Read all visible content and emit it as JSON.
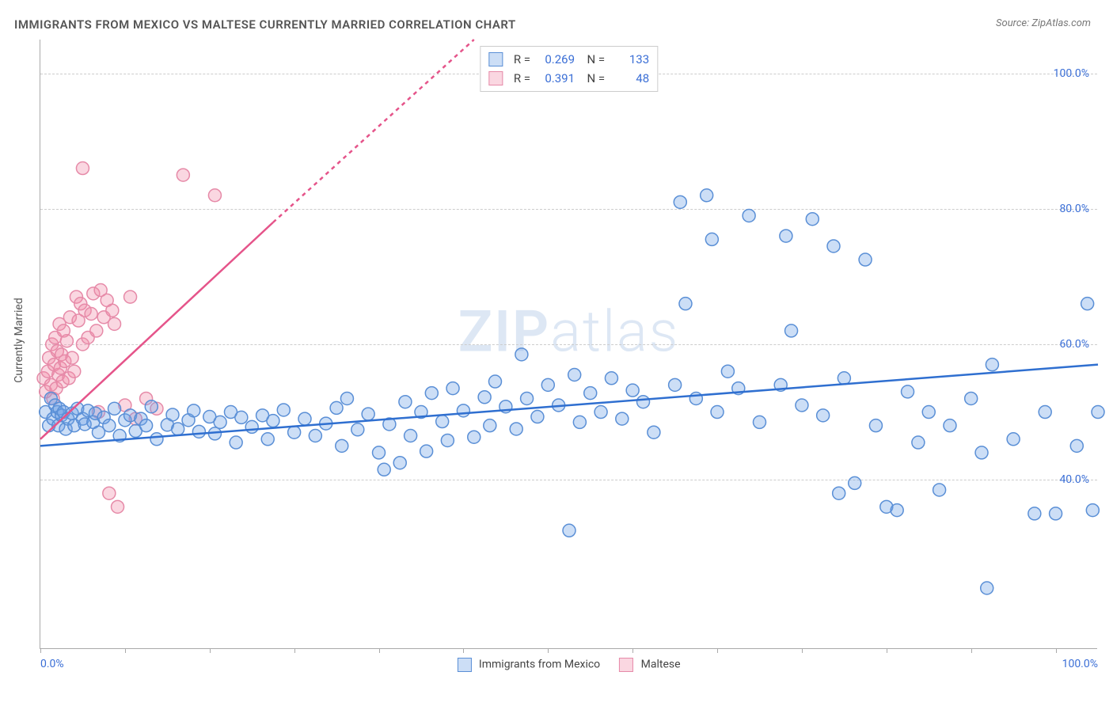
{
  "title": "IMMIGRANTS FROM MEXICO VS MALTESE CURRENTLY MARRIED CORRELATION CHART",
  "source": "Source: ZipAtlas.com",
  "watermark": "ZIPatlas",
  "ylabel": "Currently Married",
  "chart": {
    "type": "scatter",
    "background_color": "#ffffff",
    "grid_color": "#cccccc",
    "axis_color": "#aaaaaa",
    "tick_label_color": "#3b6fd6",
    "xlim": [
      0,
      100
    ],
    "ylim": [
      15,
      105
    ],
    "x_ticks_pct": [
      0,
      8,
      16,
      24,
      32,
      40,
      48,
      56,
      64,
      72,
      80,
      88,
      96
    ],
    "x_labels": [
      {
        "pct": 0,
        "text": "0.0%"
      },
      {
        "pct": 100,
        "text": "100.0%"
      }
    ],
    "y_gridlines": [
      {
        "value": 40,
        "label": "40.0%"
      },
      {
        "value": 60,
        "label": "60.0%"
      },
      {
        "value": 80,
        "label": "80.0%"
      },
      {
        "value": 100,
        "label": "100.0%"
      }
    ],
    "marker_radius": 8,
    "marker_stroke_width": 1.5,
    "line_width": 2.5
  },
  "series": {
    "mexico": {
      "label": "Immigrants from Mexico",
      "fill": "rgba(110,160,230,0.35)",
      "stroke": "#5a8fd6",
      "line_color": "#2f6fd0",
      "r": 0.269,
      "n": 133,
      "trend": {
        "x1": 0,
        "y1": 45,
        "x2": 100,
        "y2": 57
      },
      "points": [
        [
          0.5,
          50
        ],
        [
          0.8,
          48
        ],
        [
          1.0,
          52
        ],
        [
          1.2,
          49
        ],
        [
          1.4,
          51
        ],
        [
          1.6,
          50
        ],
        [
          1.7,
          48
        ],
        [
          1.8,
          50.5
        ],
        [
          2.0,
          49.5
        ],
        [
          2.2,
          50
        ],
        [
          2.4,
          47.5
        ],
        [
          2.6,
          49
        ],
        [
          3.0,
          49.8
        ],
        [
          3.2,
          48
        ],
        [
          3.5,
          50.5
        ],
        [
          4.0,
          49.0
        ],
        [
          4.2,
          48.2
        ],
        [
          4.5,
          50.2
        ],
        [
          5.0,
          48.5
        ],
        [
          5.2,
          49.8
        ],
        [
          5.5,
          47.0
        ],
        [
          6.0,
          49.2
        ],
        [
          6.5,
          48.0
        ],
        [
          7.0,
          50.5
        ],
        [
          7.5,
          46.5
        ],
        [
          8.0,
          48.8
        ],
        [
          8.5,
          49.5
        ],
        [
          9.0,
          47.2
        ],
        [
          9.5,
          49.0
        ],
        [
          10.0,
          48.0
        ],
        [
          10.5,
          50.8
        ],
        [
          11.0,
          46.0
        ],
        [
          12.0,
          48.1
        ],
        [
          12.5,
          49.6
        ],
        [
          13.0,
          47.5
        ],
        [
          14.0,
          48.8
        ],
        [
          14.5,
          50.2
        ],
        [
          15.0,
          47.1
        ],
        [
          16.0,
          49.3
        ],
        [
          16.5,
          46.8
        ],
        [
          17.0,
          48.5
        ],
        [
          18.0,
          50.0
        ],
        [
          18.5,
          45.5
        ],
        [
          19.0,
          49.2
        ],
        [
          20.0,
          47.8
        ],
        [
          21.0,
          49.5
        ],
        [
          21.5,
          46.0
        ],
        [
          22.0,
          48.7
        ],
        [
          23.0,
          50.3
        ],
        [
          24.0,
          47.0
        ],
        [
          25.0,
          49.0
        ],
        [
          26.0,
          46.5
        ],
        [
          27.0,
          48.3
        ],
        [
          28.0,
          50.6
        ],
        [
          28.5,
          45.0
        ],
        [
          29.0,
          52.0
        ],
        [
          30.0,
          47.4
        ],
        [
          31.0,
          49.7
        ],
        [
          32.0,
          44.0
        ],
        [
          32.5,
          41.5
        ],
        [
          33.0,
          48.2
        ],
        [
          34.0,
          42.5
        ],
        [
          34.5,
          51.5
        ],
        [
          35.0,
          46.5
        ],
        [
          36.0,
          50.0
        ],
        [
          36.5,
          44.2
        ],
        [
          37.0,
          52.8
        ],
        [
          38.0,
          48.6
        ],
        [
          38.5,
          45.8
        ],
        [
          39.0,
          53.5
        ],
        [
          40.0,
          50.2
        ],
        [
          41.0,
          46.3
        ],
        [
          42.0,
          52.2
        ],
        [
          42.5,
          48.0
        ],
        [
          43.0,
          54.5
        ],
        [
          44.0,
          50.8
        ],
        [
          45.0,
          47.5
        ],
        [
          45.5,
          58.5
        ],
        [
          46.0,
          52.0
        ],
        [
          47.0,
          49.3
        ],
        [
          48.0,
          54.0
        ],
        [
          49.0,
          51.0
        ],
        [
          50.0,
          32.5
        ],
        [
          50.5,
          55.5
        ],
        [
          51.0,
          48.5
        ],
        [
          52.0,
          52.8
        ],
        [
          53.0,
          50.0
        ],
        [
          54.0,
          55.0
        ],
        [
          55.0,
          49.0
        ],
        [
          56.0,
          53.2
        ],
        [
          57.0,
          51.5
        ],
        [
          58.0,
          47.0
        ],
        [
          60.0,
          54.0
        ],
        [
          60.5,
          81.0
        ],
        [
          61.0,
          66.0
        ],
        [
          62.0,
          52.0
        ],
        [
          63.0,
          82.0
        ],
        [
          63.5,
          75.5
        ],
        [
          64.0,
          50.0
        ],
        [
          65.0,
          56.0
        ],
        [
          66.0,
          53.5
        ],
        [
          67.0,
          79.0
        ],
        [
          68.0,
          48.5
        ],
        [
          70.0,
          54.0
        ],
        [
          70.5,
          76.0
        ],
        [
          71.0,
          62.0
        ],
        [
          72.0,
          51.0
        ],
        [
          73.0,
          78.5
        ],
        [
          74.0,
          49.5
        ],
        [
          75.0,
          74.5
        ],
        [
          75.5,
          38.0
        ],
        [
          76.0,
          55.0
        ],
        [
          77.0,
          39.5
        ],
        [
          78.0,
          72.5
        ],
        [
          79.0,
          48.0
        ],
        [
          80.0,
          36.0
        ],
        [
          81.0,
          35.5
        ],
        [
          82.0,
          53.0
        ],
        [
          83.0,
          45.5
        ],
        [
          84.0,
          50.0
        ],
        [
          85.0,
          38.5
        ],
        [
          86.0,
          48.0
        ],
        [
          88.0,
          52.0
        ],
        [
          89.0,
          44.0
        ],
        [
          89.5,
          24.0
        ],
        [
          90.0,
          57.0
        ],
        [
          92.0,
          46.0
        ],
        [
          94.0,
          35.0
        ],
        [
          95.0,
          50.0
        ],
        [
          96.0,
          35.0
        ],
        [
          98.0,
          45.0
        ],
        [
          99.0,
          66.0
        ],
        [
          99.5,
          35.5
        ],
        [
          100.0,
          50.0
        ]
      ]
    },
    "maltese": {
      "label": "Maltese",
      "fill": "rgba(240,140,170,0.35)",
      "stroke": "#e68aa8",
      "line_color": "#e5548a",
      "line_dash_extension": true,
      "r": 0.391,
      "n": 48,
      "trend": {
        "x1": 0,
        "y1": 46,
        "x2": 22,
        "y2": 78
      },
      "trend_ext": {
        "x1": 22,
        "y1": 78,
        "x2": 41,
        "y2": 105
      },
      "points": [
        [
          0.3,
          55
        ],
        [
          0.5,
          53
        ],
        [
          0.7,
          56
        ],
        [
          0.8,
          58
        ],
        [
          1.0,
          54
        ],
        [
          1.1,
          60
        ],
        [
          1.2,
          52
        ],
        [
          1.3,
          57
        ],
        [
          1.4,
          61
        ],
        [
          1.5,
          53.5
        ],
        [
          1.6,
          59
        ],
        [
          1.7,
          55.5
        ],
        [
          1.8,
          63
        ],
        [
          1.9,
          56.5
        ],
        [
          2.0,
          58.5
        ],
        [
          2.1,
          54.5
        ],
        [
          2.2,
          62
        ],
        [
          2.3,
          57.5
        ],
        [
          2.5,
          60.5
        ],
        [
          2.7,
          55
        ],
        [
          2.8,
          64
        ],
        [
          3.0,
          58
        ],
        [
          3.2,
          56
        ],
        [
          3.4,
          67
        ],
        [
          3.6,
          63.5
        ],
        [
          3.8,
          66
        ],
        [
          4.0,
          60
        ],
        [
          4.2,
          65
        ],
        [
          4.5,
          61
        ],
        [
          4.8,
          64.5
        ],
        [
          5.0,
          67.5
        ],
        [
          5.3,
          62
        ],
        [
          5.5,
          50
        ],
        [
          5.7,
          68
        ],
        [
          6.0,
          64
        ],
        [
          6.3,
          66.5
        ],
        [
          6.5,
          38
        ],
        [
          6.8,
          65
        ],
        [
          7.0,
          63
        ],
        [
          7.3,
          36
        ],
        [
          8.0,
          51
        ],
        [
          8.5,
          67
        ],
        [
          13.5,
          85
        ],
        [
          4.0,
          86
        ],
        [
          16.5,
          82
        ],
        [
          9.0,
          49
        ],
        [
          10.0,
          52
        ],
        [
          11.0,
          50.5
        ]
      ]
    }
  },
  "legend_top": {
    "rows": [
      {
        "swatch": "mexico",
        "r": "0.269",
        "n": "133"
      },
      {
        "swatch": "maltese",
        "r": "0.391",
        "n": "48"
      }
    ]
  }
}
